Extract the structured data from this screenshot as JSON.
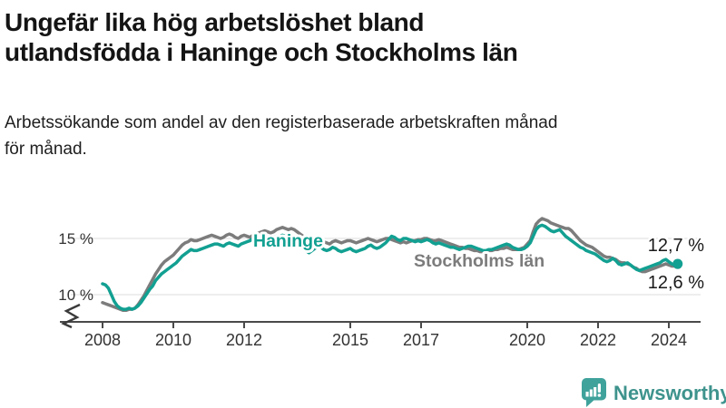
{
  "header": {
    "title_lines": [
      "Ungefär lika hög arbetslöshet bland",
      "utlandsfödda i Haninge och Stockholms län"
    ],
    "subtitle_lines": [
      "Arbetssökande som andel av den registerbaserade arbetskraften månad",
      "för månad."
    ]
  },
  "chart_data": {
    "type": "line",
    "unit": "percent of registered labour force",
    "x_start": "2008-01",
    "x_end": "2024-04",
    "x_frequency": "monthly",
    "x_tick_labels": [
      "2008",
      "2010",
      "2012",
      "2015",
      "2017",
      "2020",
      "2022",
      "2024"
    ],
    "y_tick_labels": [
      "15 %",
      "10 %"
    ],
    "y_ticks": [
      15,
      10
    ],
    "ylim_display": [
      7.7,
      17.2
    ],
    "axis_break": true,
    "grid": "horizontal",
    "legend_position": "inline-labels",
    "series": [
      {
        "name": "Stockholms län",
        "color": "#7c7c7c",
        "end_value": 12.6,
        "end_label": "12,6 %",
        "values": [
          9.2,
          9.1,
          9.0,
          8.9,
          8.8,
          8.7,
          8.6,
          8.5,
          8.5,
          8.6,
          8.6,
          8.7,
          9.0,
          9.4,
          9.8,
          10.3,
          10.8,
          11.3,
          11.8,
          12.2,
          12.6,
          12.9,
          13.1,
          13.3,
          13.5,
          13.8,
          14.1,
          14.4,
          14.6,
          14.7,
          14.9,
          14.8,
          14.8,
          14.9,
          15.0,
          15.1,
          15.2,
          15.3,
          15.2,
          15.1,
          15.0,
          15.1,
          15.3,
          15.4,
          15.3,
          15.1,
          15.0,
          15.2,
          15.3,
          15.2,
          15.1,
          15.3,
          15.4,
          15.5,
          15.6,
          15.7,
          15.6,
          15.5,
          15.6,
          15.8,
          15.9,
          16.0,
          15.9,
          15.8,
          15.9,
          15.8,
          15.6,
          15.4,
          15.2,
          15.1,
          15.0,
          14.9,
          14.8,
          14.7,
          14.6,
          14.7,
          14.6,
          14.5,
          14.7,
          14.8,
          14.7,
          14.6,
          14.7,
          14.8,
          14.8,
          14.7,
          14.6,
          14.7,
          14.8,
          14.9,
          15.0,
          14.9,
          14.8,
          14.7,
          14.8,
          14.9,
          15.0,
          15.0,
          14.9,
          14.8,
          14.7,
          14.6,
          14.7,
          14.6,
          14.7,
          14.8,
          14.8,
          14.9,
          14.9,
          15.0,
          15.0,
          14.9,
          14.8,
          14.8,
          14.9,
          14.8,
          14.7,
          14.6,
          14.5,
          14.4,
          14.3,
          14.2,
          14.2,
          14.1,
          14.1,
          14.0,
          13.9,
          13.9,
          13.8,
          13.8,
          13.8,
          13.9,
          13.9,
          14.0,
          14.0,
          14.1,
          14.1,
          14.2,
          14.1,
          14.0,
          14.0,
          14.0,
          14.1,
          14.2,
          14.5,
          14.8,
          15.6,
          16.3,
          16.6,
          16.8,
          16.7,
          16.6,
          16.4,
          16.3,
          16.2,
          16.1,
          16.0,
          15.9,
          15.9,
          15.7,
          15.4,
          15.1,
          14.8,
          14.6,
          14.4,
          14.3,
          14.2,
          14.0,
          13.8,
          13.6,
          13.4,
          13.3,
          13.3,
          13.2,
          13.1,
          12.9,
          12.8,
          12.8,
          12.7,
          12.6,
          12.4,
          12.3,
          12.1,
          12.0,
          12.0,
          12.1,
          12.2,
          12.3,
          12.4,
          12.5,
          12.6,
          12.7,
          12.6,
          12.5,
          12.5,
          12.6
        ]
      },
      {
        "name": "Haninge",
        "color": "#12a092",
        "end_value": 12.7,
        "end_label": "12,7 %",
        "values": [
          10.9,
          10.8,
          10.5,
          9.9,
          9.3,
          8.9,
          8.7,
          8.6,
          8.6,
          8.7,
          8.6,
          8.7,
          8.9,
          9.2,
          9.6,
          10.0,
          10.4,
          10.7,
          11.2,
          11.5,
          11.8,
          12.0,
          12.2,
          12.4,
          12.6,
          12.8,
          13.1,
          13.4,
          13.6,
          13.8,
          14.0,
          13.9,
          13.9,
          14.0,
          14.1,
          14.2,
          14.3,
          14.4,
          14.5,
          14.5,
          14.4,
          14.3,
          14.5,
          14.6,
          14.5,
          14.4,
          14.3,
          14.5,
          14.6,
          14.7,
          14.8,
          15.0,
          15.0,
          15.1,
          15.1,
          15.2,
          15.1,
          15.0,
          15.1,
          15.2,
          15.2,
          15.3,
          15.2,
          15.1,
          15.0,
          14.9,
          14.8,
          14.5,
          14.2,
          13.9,
          13.7,
          13.9,
          14.1,
          14.3,
          14.2,
          14.0,
          13.9,
          14.0,
          14.2,
          14.1,
          13.9,
          13.8,
          13.9,
          14.0,
          14.1,
          13.9,
          13.8,
          13.9,
          14.0,
          14.1,
          14.3,
          14.4,
          14.2,
          14.1,
          14.2,
          14.4,
          14.6,
          14.9,
          15.2,
          15.1,
          14.9,
          14.8,
          15.0,
          15.0,
          14.9,
          14.8,
          14.7,
          14.8,
          14.7,
          14.8,
          14.9,
          14.8,
          14.6,
          14.5,
          14.6,
          14.5,
          14.4,
          14.3,
          14.2,
          14.2,
          14.1,
          14.0,
          14.1,
          14.2,
          14.3,
          14.3,
          14.2,
          14.1,
          14.0,
          13.9,
          13.9,
          14.0,
          14.0,
          14.1,
          14.2,
          14.3,
          14.4,
          14.5,
          14.4,
          14.2,
          14.1,
          14.0,
          14.0,
          14.1,
          14.3,
          14.6,
          15.2,
          15.8,
          16.1,
          16.2,
          16.1,
          15.9,
          15.7,
          15.6,
          15.7,
          15.8,
          15.5,
          15.2,
          15.0,
          14.8,
          14.6,
          14.4,
          14.2,
          14.1,
          13.9,
          13.8,
          13.7,
          13.6,
          13.4,
          13.2,
          13.0,
          12.9,
          13.0,
          13.2,
          13.0,
          12.7,
          12.6,
          12.7,
          12.8,
          12.6,
          12.4,
          12.2,
          12.1,
          12.2,
          12.3,
          12.4,
          12.5,
          12.6,
          12.7,
          12.8,
          13.0,
          13.1,
          12.9,
          12.7,
          12.6,
          12.7
        ]
      }
    ]
  },
  "footer": {
    "brand": "Newsworthy",
    "brand_color": "#3e938d",
    "logo_icon": "speech-bubble-bar-chart-icon"
  }
}
